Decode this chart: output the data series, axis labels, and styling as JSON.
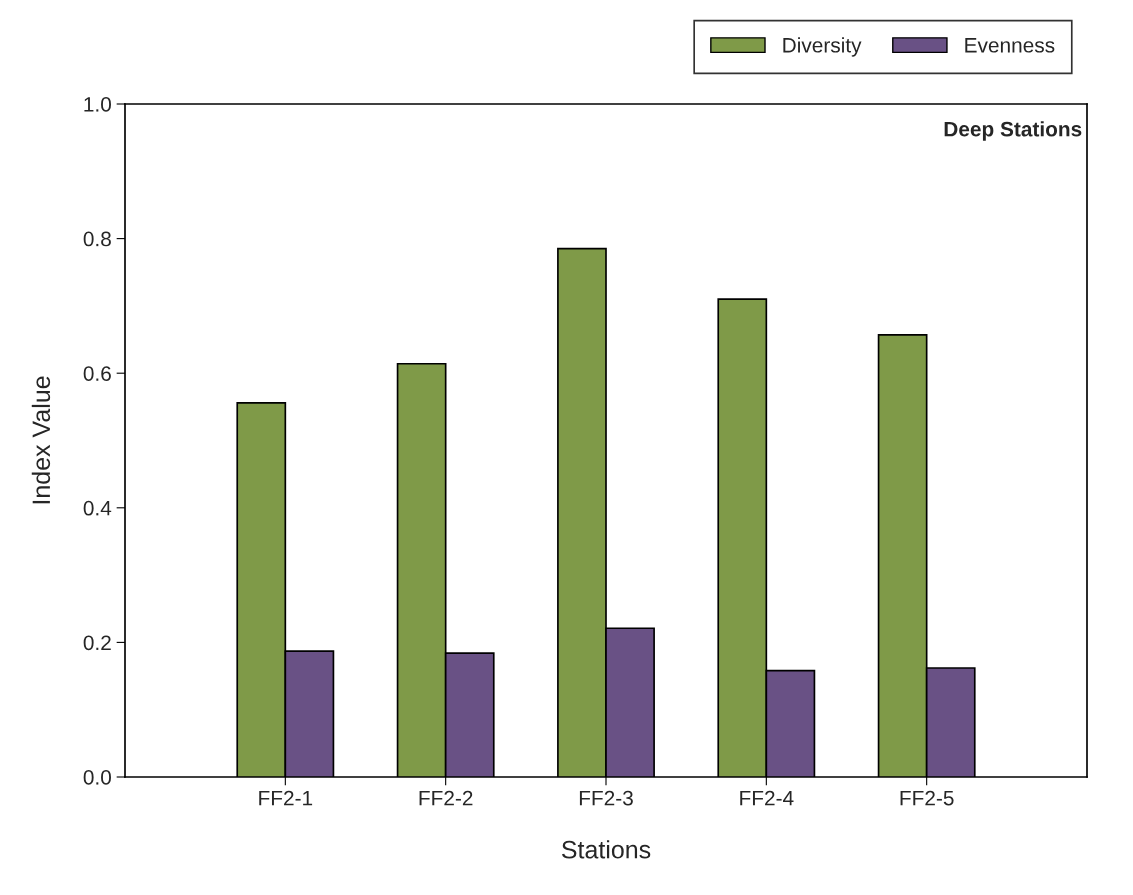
{
  "chart_data": {
    "type": "bar",
    "title": "Deep Stations",
    "xlabel": "Stations",
    "ylabel": "Index Value",
    "categories": [
      "FF2-1",
      "FF2-2",
      "FF2-3",
      "FF2-4",
      "FF2-5"
    ],
    "series": [
      {
        "name": "Diversity",
        "color": "#7f9a48",
        "values": [
          0.556,
          0.614,
          0.785,
          0.71,
          0.657
        ]
      },
      {
        "name": "Evenness",
        "color": "#695185",
        "values": [
          0.187,
          0.184,
          0.221,
          0.158,
          0.162
        ]
      }
    ],
    "ylim": [
      0,
      1
    ],
    "yticks": [
      {
        "value": 0,
        "label": "0.0"
      },
      {
        "value": 0.2,
        "label": "0.2"
      },
      {
        "value": 0.4,
        "label": "0.4"
      },
      {
        "value": 0.6,
        "label": "0.6"
      },
      {
        "value": 0.8,
        "label": "0.8"
      },
      {
        "value": 1,
        "label": "1.0"
      }
    ],
    "grid": false,
    "legend": "top right"
  }
}
